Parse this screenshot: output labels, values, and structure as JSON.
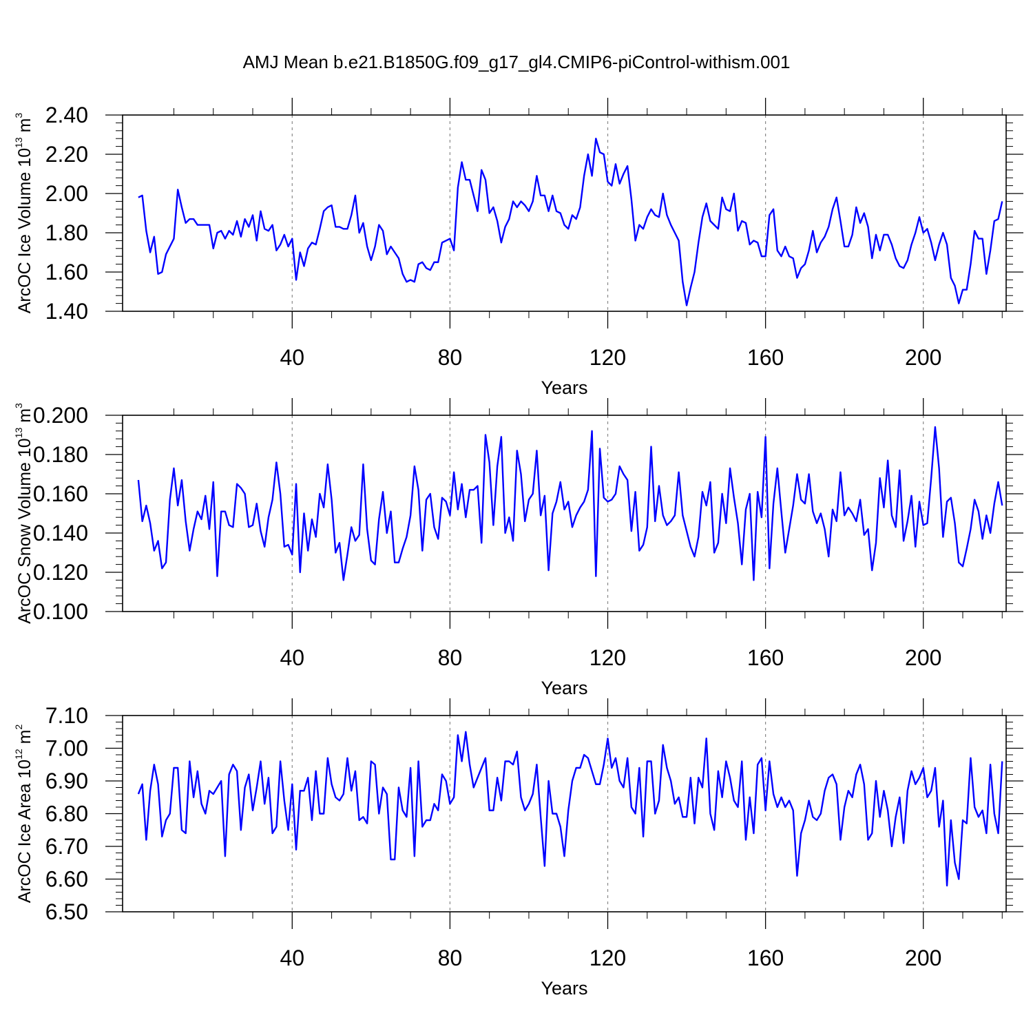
{
  "title": "AMJ Mean b.e21.B1850G.f09_g17_gl4.CMIP6-piControl-withism.001",
  "colors": {
    "series": "#0000ff",
    "axis": "#000000",
    "refline": "#888888"
  },
  "chart_data": [
    {
      "type": "line",
      "ylabel": {
        "text": "ArcOC Ice Volume 10",
        "exp": "13",
        "unit": " m",
        "unit_exp": "3"
      },
      "xlabel": "Years",
      "xlim": [
        -3,
        221
      ],
      "ylim": [
        1.4,
        2.4
      ],
      "xticks": [
        40,
        80,
        120,
        160,
        200
      ],
      "xtick_labels": [
        "40",
        "80",
        "120",
        "160",
        "200"
      ],
      "yticks": [
        1.4,
        1.6,
        1.8,
        2.0,
        2.2,
        2.4
      ],
      "ytick_labels": [
        "1.40",
        "1.60",
        "1.80",
        "2.00",
        "2.20",
        "2.40"
      ],
      "yminor": 5,
      "reference_lines_x": [
        40,
        80,
        120,
        160,
        200
      ],
      "x_start": 1,
      "series": [
        {
          "name": "ArcOC Ice Volume",
          "values": [
            1.98,
            1.99,
            1.81,
            1.7,
            1.78,
            1.59,
            1.6,
            1.69,
            1.73,
            1.77,
            2.02,
            1.93,
            1.85,
            1.87,
            1.87,
            1.84,
            1.84,
            1.84,
            1.84,
            1.72,
            1.8,
            1.81,
            1.77,
            1.81,
            1.79,
            1.86,
            1.78,
            1.87,
            1.83,
            1.89,
            1.76,
            1.91,
            1.82,
            1.81,
            1.84,
            1.71,
            1.74,
            1.79,
            1.73,
            1.77,
            1.56,
            1.7,
            1.63,
            1.72,
            1.75,
            1.74,
            1.82,
            1.91,
            1.93,
            1.94,
            1.83,
            1.83,
            1.82,
            1.82,
            1.89,
            1.99,
            1.8,
            1.85,
            1.73,
            1.66,
            1.73,
            1.84,
            1.81,
            1.69,
            1.73,
            1.7,
            1.67,
            1.59,
            1.55,
            1.56,
            1.55,
            1.64,
            1.65,
            1.62,
            1.61,
            1.65,
            1.65,
            1.75,
            1.76,
            1.77,
            1.71,
            2.03,
            2.16,
            2.07,
            2.07,
            1.99,
            1.91,
            2.12,
            2.07,
            1.9,
            1.93,
            1.86,
            1.75,
            1.83,
            1.87,
            1.96,
            1.93,
            1.96,
            1.94,
            1.91,
            1.96,
            2.09,
            1.99,
            1.99,
            1.91,
            1.99,
            1.91,
            1.9,
            1.84,
            1.82,
            1.89,
            1.87,
            1.93,
            2.09,
            2.2,
            2.09,
            2.28,
            2.21,
            2.2,
            2.06,
            2.04,
            2.15,
            2.05,
            2.1,
            2.14,
            1.97,
            1.76,
            1.84,
            1.82,
            1.88,
            1.92,
            1.89,
            1.88,
            2.0,
            1.89,
            1.84,
            1.8,
            1.76,
            1.55,
            1.43,
            1.52,
            1.6,
            1.75,
            1.88,
            1.95,
            1.86,
            1.84,
            1.82,
            1.98,
            1.92,
            1.91,
            2.0,
            1.81,
            1.86,
            1.85,
            1.74,
            1.76,
            1.75,
            1.68,
            1.68,
            1.89,
            1.92,
            1.71,
            1.68,
            1.73,
            1.68,
            1.67,
            1.57,
            1.62,
            1.64,
            1.71,
            1.81,
            1.7,
            1.75,
            1.78,
            1.83,
            1.92,
            1.98,
            1.86,
            1.73,
            1.73,
            1.79,
            1.93,
            1.85,
            1.9,
            1.83,
            1.67,
            1.79,
            1.71,
            1.79,
            1.79,
            1.74,
            1.67,
            1.63,
            1.62,
            1.66,
            1.74,
            1.8,
            1.88,
            1.8,
            1.82,
            1.75,
            1.66,
            1.74,
            1.8,
            1.74,
            1.57,
            1.53,
            1.44,
            1.51,
            1.51,
            1.64,
            1.81,
            1.77,
            1.77,
            1.59,
            1.71,
            1.86,
            1.87,
            1.96
          ]
        }
      ]
    },
    {
      "type": "line",
      "ylabel": {
        "text": "ArcOC Snow Volume 10",
        "exp": "13",
        "unit": " m",
        "unit_exp": "3"
      },
      "xlabel": "Years",
      "xlim": [
        -3,
        221
      ],
      "ylim": [
        0.1,
        0.2
      ],
      "xticks": [
        40,
        80,
        120,
        160,
        200
      ],
      "xtick_labels": [
        "40",
        "80",
        "120",
        "160",
        "200"
      ],
      "yticks": [
        0.1,
        0.12,
        0.14,
        0.16,
        0.18,
        0.2
      ],
      "ytick_labels": [
        "0.100",
        "0.120",
        "0.140",
        "0.160",
        "0.180",
        "0.200"
      ],
      "yminor": 5,
      "reference_lines_x": [
        40,
        80,
        120,
        160,
        200
      ],
      "x_start": 1,
      "series": [
        {
          "name": "ArcOC Snow Volume",
          "values": [
            0.167,
            0.146,
            0.154,
            0.145,
            0.131,
            0.136,
            0.122,
            0.125,
            0.157,
            0.173,
            0.154,
            0.167,
            0.146,
            0.131,
            0.142,
            0.151,
            0.147,
            0.159,
            0.142,
            0.166,
            0.118,
            0.151,
            0.151,
            0.144,
            0.143,
            0.165,
            0.163,
            0.16,
            0.143,
            0.144,
            0.155,
            0.141,
            0.133,
            0.148,
            0.157,
            0.176,
            0.16,
            0.133,
            0.134,
            0.129,
            0.165,
            0.12,
            0.15,
            0.131,
            0.147,
            0.138,
            0.16,
            0.153,
            0.175,
            0.157,
            0.13,
            0.135,
            0.116,
            0.129,
            0.143,
            0.136,
            0.139,
            0.175,
            0.142,
            0.126,
            0.124,
            0.147,
            0.161,
            0.14,
            0.151,
            0.125,
            0.125,
            0.132,
            0.138,
            0.149,
            0.174,
            0.162,
            0.131,
            0.157,
            0.16,
            0.143,
            0.137,
            0.158,
            0.156,
            0.149,
            0.171,
            0.152,
            0.165,
            0.148,
            0.162,
            0.162,
            0.164,
            0.135,
            0.19,
            0.176,
            0.144,
            0.174,
            0.189,
            0.14,
            0.148,
            0.136,
            0.182,
            0.17,
            0.146,
            0.157,
            0.16,
            0.182,
            0.149,
            0.159,
            0.121,
            0.15,
            0.156,
            0.166,
            0.152,
            0.156,
            0.143,
            0.149,
            0.153,
            0.156,
            0.162,
            0.192,
            0.118,
            0.183,
            0.158,
            0.156,
            0.157,
            0.16,
            0.174,
            0.17,
            0.167,
            0.141,
            0.161,
            0.131,
            0.134,
            0.143,
            0.184,
            0.146,
            0.164,
            0.149,
            0.144,
            0.146,
            0.149,
            0.171,
            0.149,
            0.141,
            0.133,
            0.128,
            0.138,
            0.161,
            0.154,
            0.166,
            0.13,
            0.135,
            0.16,
            0.145,
            0.173,
            0.158,
            0.145,
            0.124,
            0.152,
            0.16,
            0.116,
            0.161,
            0.148,
            0.189,
            0.122,
            0.155,
            0.173,
            0.151,
            0.13,
            0.142,
            0.154,
            0.17,
            0.157,
            0.155,
            0.17,
            0.151,
            0.145,
            0.15,
            0.142,
            0.128,
            0.152,
            0.146,
            0.171,
            0.149,
            0.153,
            0.15,
            0.146,
            0.157,
            0.139,
            0.142,
            0.121,
            0.135,
            0.168,
            0.153,
            0.177,
            0.149,
            0.143,
            0.172,
            0.136,
            0.146,
            0.159,
            0.133,
            0.156,
            0.144,
            0.145,
            0.168,
            0.194,
            0.173,
            0.138,
            0.156,
            0.158,
            0.145,
            0.125,
            0.123,
            0.132,
            0.142,
            0.157,
            0.151,
            0.137,
            0.149,
            0.14,
            0.155,
            0.166,
            0.154
          ]
        }
      ]
    },
    {
      "type": "line",
      "ylabel": {
        "text": "ArcOC Ice Area 10",
        "exp": "12",
        "unit": " m",
        "unit_exp": "2"
      },
      "xlabel": "Years",
      "xlim": [
        -3,
        221
      ],
      "ylim": [
        6.5,
        7.1
      ],
      "xticks": [
        40,
        80,
        120,
        160,
        200
      ],
      "xtick_labels": [
        "40",
        "80",
        "120",
        "160",
        "200"
      ],
      "yticks": [
        6.5,
        6.6,
        6.7,
        6.8,
        6.9,
        7.0,
        7.1
      ],
      "ytick_labels": [
        "6.50",
        "6.60",
        "6.70",
        "6.80",
        "6.90",
        "7.00",
        "7.10"
      ],
      "yminor": 5,
      "reference_lines_x": [
        40,
        80,
        120,
        160,
        200
      ],
      "x_start": 1,
      "series": [
        {
          "name": "ArcOC Ice Area",
          "values": [
            6.86,
            6.89,
            6.72,
            6.87,
            6.95,
            6.89,
            6.73,
            6.78,
            6.8,
            6.94,
            6.94,
            6.75,
            6.74,
            6.96,
            6.85,
            6.93,
            6.83,
            6.8,
            6.87,
            6.86,
            6.88,
            6.9,
            6.67,
            6.92,
            6.95,
            6.93,
            6.75,
            6.88,
            6.92,
            6.81,
            6.88,
            6.96,
            6.83,
            6.91,
            6.74,
            6.76,
            6.96,
            6.84,
            6.75,
            6.89,
            6.69,
            6.87,
            6.87,
            6.91,
            6.78,
            6.93,
            6.8,
            6.8,
            6.97,
            6.89,
            6.85,
            6.84,
            6.86,
            6.97,
            6.87,
            6.93,
            6.78,
            6.79,
            6.77,
            6.96,
            6.95,
            6.8,
            6.88,
            6.86,
            6.66,
            6.66,
            6.88,
            6.81,
            6.79,
            6.94,
            6.67,
            6.96,
            6.76,
            6.78,
            6.78,
            6.83,
            6.81,
            6.92,
            6.9,
            6.83,
            6.85,
            7.04,
            6.96,
            7.05,
            6.95,
            6.88,
            6.91,
            6.94,
            6.97,
            6.81,
            6.81,
            6.91,
            6.84,
            6.96,
            6.96,
            6.95,
            6.99,
            6.85,
            6.81,
            6.83,
            6.86,
            6.95,
            6.79,
            6.64,
            6.9,
            6.8,
            6.8,
            6.76,
            6.67,
            6.81,
            6.9,
            6.94,
            6.94,
            6.98,
            6.97,
            6.93,
            6.89,
            6.89,
            6.95,
            7.03,
            6.94,
            6.97,
            6.9,
            6.88,
            6.97,
            6.82,
            6.8,
            6.94,
            6.73,
            6.96,
            6.96,
            6.8,
            6.84,
            7.01,
            6.94,
            6.9,
            6.83,
            6.85,
            6.79,
            6.79,
            6.91,
            6.77,
            6.91,
            6.88,
            7.03,
            6.8,
            6.75,
            6.93,
            6.85,
            6.96,
            6.91,
            6.84,
            6.82,
            6.96,
            6.72,
            6.85,
            6.74,
            6.95,
            6.97,
            6.81,
            6.96,
            6.86,
            6.82,
            6.85,
            6.82,
            6.84,
            6.81,
            6.61,
            6.74,
            6.78,
            6.84,
            6.79,
            6.78,
            6.8,
            6.87,
            6.91,
            6.92,
            6.89,
            6.72,
            6.82,
            6.87,
            6.85,
            6.92,
            6.95,
            6.89,
            6.72,
            6.74,
            6.9,
            6.79,
            6.87,
            6.81,
            6.7,
            6.79,
            6.85,
            6.71,
            6.87,
            6.93,
            6.89,
            6.91,
            6.94,
            6.85,
            6.87,
            6.94,
            6.76,
            6.84,
            6.58,
            6.78,
            6.65,
            6.6,
            6.78,
            6.77,
            6.97,
            6.82,
            6.79,
            6.81,
            6.74,
            6.95,
            6.8,
            6.74,
            6.96
          ]
        }
      ]
    }
  ]
}
